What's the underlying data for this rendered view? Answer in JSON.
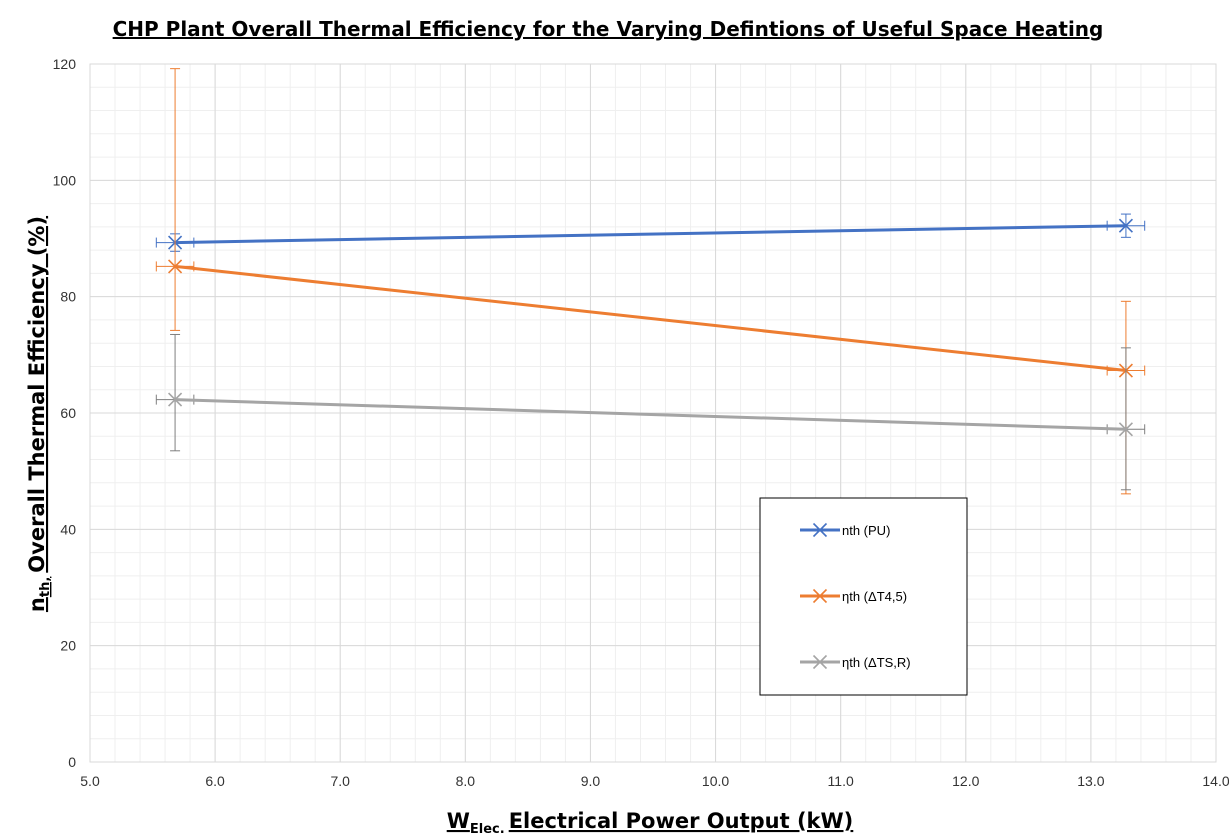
{
  "chart_data": {
    "type": "line",
    "title": "CHP Plant Overall Thermal Efficiency for the Varying Defintions of Useful Space Heating",
    "xlabel": {
      "main": "W",
      "sub": "Elec.",
      "rest": "Electrical Power Output (kW)"
    },
    "ylabel": {
      "main": "n",
      "sub": "th,",
      "rest": "Overall Thermal Efficiency (%)"
    },
    "xlim": [
      5.0,
      14.0
    ],
    "ylim": [
      0,
      120
    ],
    "x_ticks": [
      "5.0",
      "6.0",
      "7.0",
      "8.0",
      "9.0",
      "10.0",
      "11.0",
      "12.0",
      "13.0",
      "14.0"
    ],
    "y_ticks": [
      "0",
      "20",
      "40",
      "60",
      "80",
      "100",
      "120"
    ],
    "grid": true,
    "legend_position": "lower-right",
    "series": [
      {
        "name": "nth (PU)",
        "color": "#4472C4",
        "err_color": "#4472C4",
        "x": [
          5.68,
          13.28
        ],
        "y": [
          89.3,
          92.2
        ],
        "y_err_low": [
          1.5,
          2.0
        ],
        "y_err_high": [
          1.5,
          2.0
        ],
        "x_err": [
          0.15,
          0.15
        ]
      },
      {
        "name": "ηth  (ΔT4,5)",
        "color": "#ED7D31",
        "err_color": "#ED7D31",
        "x": [
          5.68,
          13.28
        ],
        "y": [
          85.2,
          67.3
        ],
        "y_err_low": [
          11.0,
          21.2
        ],
        "y_err_high": [
          34.0,
          11.9
        ],
        "x_err": [
          0.15,
          0.15
        ]
      },
      {
        "name": "ηth (ΔTS,R)",
        "color": "#A5A5A5",
        "err_color": "#7F7F7F",
        "x": [
          5.68,
          13.28
        ],
        "y": [
          62.3,
          57.2
        ],
        "y_err_low": [
          8.8,
          10.4
        ],
        "y_err_high": [
          11.2,
          14.0
        ],
        "x_err": [
          0.15,
          0.15
        ]
      }
    ]
  }
}
